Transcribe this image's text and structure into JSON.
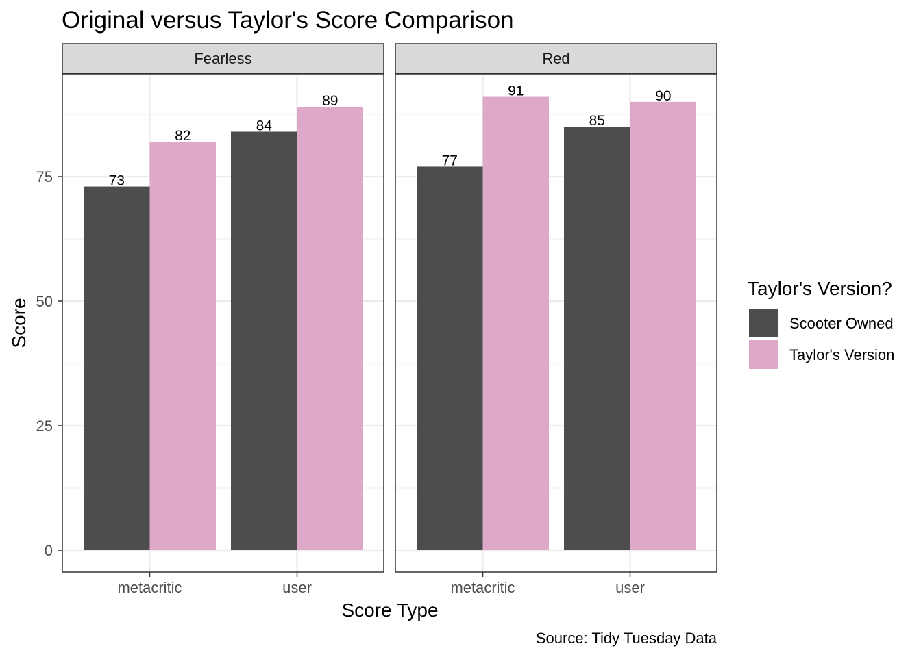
{
  "chart_data": {
    "type": "bar",
    "title": "Original versus Taylor's Score Comparison",
    "xlabel": "Score Type",
    "ylabel": "Score",
    "caption": "Source: Tidy Tuesday Data",
    "ylim": [
      0,
      96
    ],
    "yticks": [
      0,
      25,
      50,
      75
    ],
    "grid": true,
    "legend": {
      "title": "Taylor's Version?",
      "placement": "right"
    },
    "categories": [
      "metacritic",
      "user"
    ],
    "series": [
      {
        "name": "Scooter Owned",
        "color": "#4d4d4d"
      },
      {
        "name": "Taylor's Version",
        "color": "#dea8c9"
      }
    ],
    "panels": [
      {
        "name": "Fearless",
        "values": [
          [
            73,
            82
          ],
          [
            84,
            89
          ]
        ]
      },
      {
        "name": "Red",
        "values": [
          [
            77,
            91
          ],
          [
            85,
            90
          ]
        ]
      }
    ]
  }
}
